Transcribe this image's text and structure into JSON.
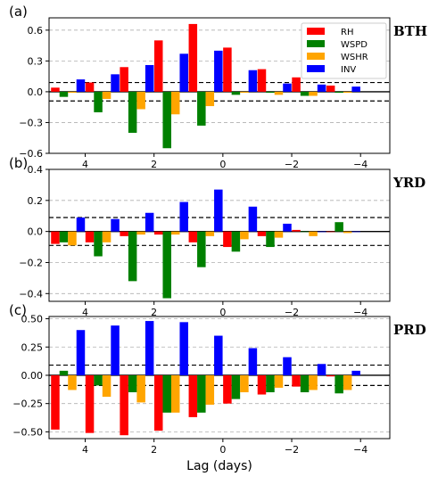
{
  "figure": {
    "xlabel": "Lag (days)"
  },
  "chart_data": [
    {
      "type": "bar",
      "panel_label": "(a)",
      "region_label": "BTH",
      "x": [
        4.5,
        4,
        3.5,
        3,
        2.5,
        2,
        1.5,
        1,
        0.5,
        0,
        -0.5,
        -1,
        -1.5,
        -2,
        -2.5,
        -3,
        -3.5,
        -4
      ],
      "xticks": [
        4,
        2,
        0,
        -2,
        -4
      ],
      "ylim": [
        -0.6,
        0.72
      ],
      "yticks": [
        -0.6,
        -0.3,
        0.0,
        0.3,
        0.6
      ],
      "ytick_labels": [
        "−0.6",
        "−0.3",
        "0.0",
        "0.3",
        "0.6"
      ],
      "significance": [
        0.09,
        -0.09
      ],
      "grid": true,
      "legend": "top-right",
      "series": [
        {
          "name": "RH",
          "color": "#ff0000",
          "values": [
            0.04,
            null,
            0.09,
            null,
            0.24,
            null,
            0.5,
            null,
            0.66,
            null,
            0.43,
            null,
            0.22,
            null,
            0.14,
            null,
            0.06,
            null
          ]
        },
        {
          "name": "WSPD",
          "color": "#008000",
          "values": [
            -0.05,
            null,
            -0.2,
            null,
            -0.4,
            null,
            -0.55,
            null,
            -0.33,
            null,
            -0.03,
            null,
            -0.01,
            null,
            -0.04,
            null,
            -0.01,
            null
          ]
        },
        {
          "name": "WSHR",
          "color": "#ffa500",
          "values": [
            -0.01,
            null,
            -0.07,
            null,
            -0.17,
            null,
            -0.22,
            null,
            -0.14,
            null,
            -0.01,
            null,
            -0.03,
            null,
            -0.04,
            null,
            -0.01,
            null
          ]
        },
        {
          "name": "INV",
          "color": "#0000ff",
          "values": [
            0.12,
            null,
            0.17,
            null,
            0.26,
            null,
            0.37,
            null,
            0.4,
            null,
            0.21,
            null,
            0.08,
            null,
            0.07,
            null,
            0.05,
            null
          ]
        }
      ]
    },
    {
      "type": "bar",
      "panel_label": "(b)",
      "region_label": "YRD",
      "x": [
        4.5,
        4,
        3.5,
        3,
        2.5,
        2,
        1.5,
        1,
        0.5,
        0,
        -0.5,
        -1,
        -1.5,
        -2,
        -2.5,
        -3,
        -3.5,
        -4
      ],
      "xticks": [
        4,
        2,
        0,
        -2,
        -4
      ],
      "ylim": [
        -0.45,
        0.4
      ],
      "yticks": [
        -0.4,
        -0.2,
        0.0,
        0.2,
        0.4
      ],
      "ytick_labels": [
        "−0.4",
        "−0.2",
        "0.0",
        "0.2",
        "0.4"
      ],
      "significance": [
        0.09,
        -0.09
      ],
      "grid": true,
      "series": [
        {
          "name": "RH",
          "color": "#ff0000",
          "values": [
            -0.08,
            null,
            -0.07,
            null,
            -0.03,
            null,
            -0.02,
            null,
            -0.07,
            null,
            -0.1,
            null,
            -0.03,
            null,
            0.01,
            null,
            0.0,
            null
          ]
        },
        {
          "name": "WSPD",
          "color": "#008000",
          "values": [
            -0.07,
            null,
            -0.16,
            null,
            -0.32,
            null,
            -0.43,
            null,
            -0.23,
            null,
            -0.13,
            null,
            -0.1,
            null,
            0.0,
            null,
            0.06,
            null
          ]
        },
        {
          "name": "WSHR",
          "color": "#ffa500",
          "values": [
            -0.09,
            null,
            -0.07,
            null,
            -0.02,
            null,
            -0.02,
            null,
            -0.03,
            null,
            -0.05,
            null,
            -0.04,
            null,
            -0.03,
            null,
            -0.01,
            null
          ]
        },
        {
          "name": "INV",
          "color": "#0000ff",
          "values": [
            0.09,
            null,
            0.08,
            null,
            0.12,
            null,
            0.19,
            null,
            0.27,
            null,
            0.16,
            null,
            0.05,
            null,
            0.0,
            null,
            0.0,
            null
          ]
        }
      ]
    },
    {
      "type": "bar",
      "panel_label": "(c)",
      "region_label": "PRD",
      "x": [
        4.5,
        4,
        3.5,
        3,
        2.5,
        2,
        1.5,
        1,
        0.5,
        0,
        -0.5,
        -1,
        -1.5,
        -2,
        -2.5,
        -3,
        -3.5,
        -4
      ],
      "xticks": [
        4,
        2,
        0,
        -2,
        -4
      ],
      "ylim": [
        -0.56,
        0.52
      ],
      "yticks": [
        -0.5,
        -0.25,
        0.0,
        0.25,
        0.5
      ],
      "ytick_labels": [
        "−0.50",
        "−0.25",
        "0.00",
        "0.25",
        "0.50"
      ],
      "significance": [
        0.09,
        -0.09
      ],
      "grid": true,
      "series": [
        {
          "name": "RH",
          "color": "#ff0000",
          "values": [
            -0.48,
            null,
            -0.51,
            null,
            -0.53,
            null,
            -0.49,
            null,
            -0.37,
            null,
            -0.25,
            null,
            -0.17,
            null,
            -0.1,
            null,
            -0.01,
            null
          ]
        },
        {
          "name": "WSPD",
          "color": "#008000",
          "values": [
            0.04,
            null,
            -0.09,
            null,
            -0.15,
            null,
            -0.33,
            null,
            -0.33,
            null,
            -0.21,
            null,
            -0.15,
            null,
            -0.15,
            null,
            -0.16,
            null
          ]
        },
        {
          "name": "WSHR",
          "color": "#ffa500",
          "values": [
            -0.13,
            null,
            -0.19,
            null,
            -0.24,
            null,
            -0.33,
            null,
            -0.26,
            null,
            -0.15,
            null,
            -0.11,
            null,
            -0.13,
            null,
            -0.13,
            null
          ]
        },
        {
          "name": "INV",
          "color": "#0000ff",
          "values": [
            0.4,
            null,
            0.44,
            null,
            0.48,
            null,
            0.47,
            null,
            0.35,
            null,
            0.24,
            null,
            0.16,
            null,
            0.1,
            null,
            0.04,
            null
          ]
        }
      ]
    }
  ]
}
